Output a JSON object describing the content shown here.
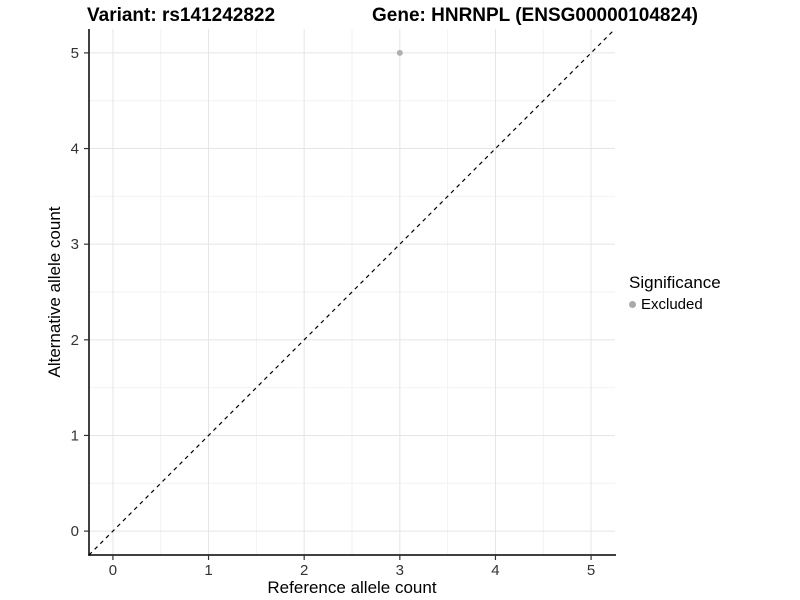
{
  "chart_data": {
    "type": "scatter",
    "title_left": "Variant: rs141242822",
    "title_right": "Gene: HNRNPL (ENSG00000104824)",
    "xlabel": "Reference allele count",
    "ylabel": "Alternative allele count",
    "xlim": [
      -0.25,
      5.25
    ],
    "ylim": [
      -0.25,
      5.25
    ],
    "x_ticks": [
      0,
      1,
      2,
      3,
      4,
      5
    ],
    "y_ticks": [
      0,
      1,
      2,
      3,
      4,
      5
    ],
    "x_minor_ticks": [
      0.5,
      1.5,
      2.5,
      3.5,
      4.5
    ],
    "y_minor_ticks": [
      0.5,
      1.5,
      2.5,
      3.5,
      4.5
    ],
    "grid": true,
    "identity_line": {
      "type": "dashed",
      "from": -0.25,
      "to": 5.25
    },
    "points": [
      {
        "x": 3,
        "y": 5,
        "significance": "Excluded"
      }
    ],
    "legend": {
      "position": "right",
      "title": "Significance",
      "items": [
        {
          "label": "Excluded",
          "color": "#aaaaaa"
        }
      ]
    },
    "colors": {
      "point": "#b0b0b0",
      "grid_major": "#e5e5e5",
      "grid_minor": "#f2f2f2",
      "axis_line": "#000000",
      "tick_mark": "#333333",
      "identity_line": "#000000",
      "background": "#ffffff"
    }
  }
}
